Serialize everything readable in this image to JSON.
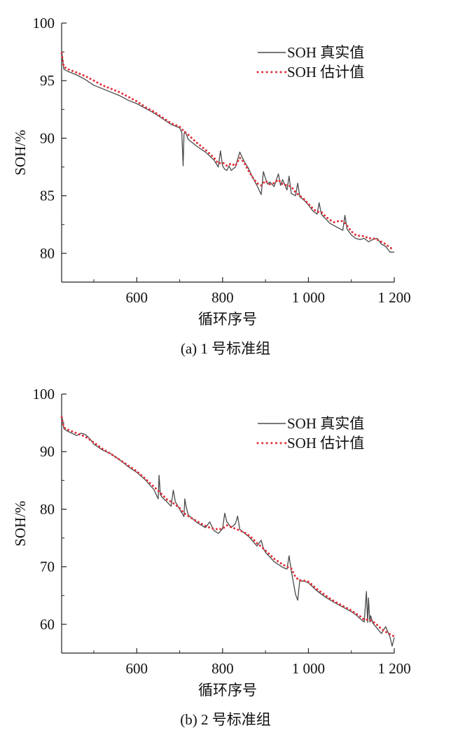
{
  "colors": {
    "actual": "#4a4a4a",
    "estimate": "#e0303a",
    "axis": "#222222"
  },
  "chart_data": [
    {
      "type": "line",
      "caption": "(a) 1 号标准组",
      "xlabel": "循环序号",
      "ylabel": "SOH/%",
      "xlim": [
        425,
        1200
      ],
      "ylim": [
        77.5,
        100
      ],
      "x_ticks": [
        {
          "v": 600,
          "label": "600"
        },
        {
          "v": 800,
          "label": "800"
        },
        {
          "v": 1000,
          "label": "1 000"
        },
        {
          "v": 1200,
          "label": "1 200"
        }
      ],
      "y_ticks": [
        {
          "v": 80,
          "label": "80"
        },
        {
          "v": 85,
          "label": "85"
        },
        {
          "v": 90,
          "label": "90"
        },
        {
          "v": 95,
          "label": "95"
        },
        {
          "v": 100,
          "label": "100"
        }
      ],
      "legend": [
        "SOH 真实值",
        "SOH 估计值"
      ],
      "series": [
        {
          "name": "SOH 真实值",
          "style": "solid",
          "x": [
            425,
            430,
            440,
            460,
            480,
            500,
            520,
            540,
            560,
            580,
            600,
            620,
            640,
            660,
            680,
            700,
            705,
            708,
            710,
            712,
            715,
            720,
            740,
            760,
            780,
            790,
            795,
            800,
            805,
            810,
            815,
            820,
            830,
            840,
            845,
            850,
            860,
            870,
            880,
            890,
            895,
            900,
            905,
            910,
            915,
            920,
            930,
            935,
            940,
            950,
            955,
            960,
            970,
            975,
            980,
            990,
            1000,
            1010,
            1020,
            1025,
            1030,
            1040,
            1050,
            1060,
            1070,
            1080,
            1085,
            1090,
            1100,
            1110,
            1120,
            1130,
            1140,
            1150,
            1160,
            1170,
            1180,
            1190,
            1200
          ],
          "y": [
            97.6,
            96.0,
            95.8,
            95.5,
            95.1,
            94.6,
            94.3,
            94.0,
            93.7,
            93.3,
            93.0,
            92.6,
            92.2,
            91.7,
            91.2,
            90.9,
            90.5,
            87.6,
            90.3,
            90.6,
            90.4,
            89.9,
            89.3,
            88.8,
            88.1,
            87.5,
            88.9,
            87.6,
            87.3,
            87.2,
            87.6,
            87.2,
            87.5,
            88.8,
            88.4,
            88.0,
            87.4,
            86.6,
            85.9,
            85.1,
            87.1,
            86.5,
            86.0,
            86.2,
            86.0,
            85.8,
            86.9,
            85.9,
            86.4,
            85.5,
            86.7,
            85.2,
            85.0,
            86.1,
            84.9,
            84.6,
            84.2,
            83.7,
            83.4,
            84.4,
            83.4,
            83.0,
            82.6,
            82.4,
            82.2,
            82.0,
            83.3,
            82.1,
            81.6,
            81.3,
            81.2,
            81.3,
            81.0,
            81.2,
            81.3,
            80.8,
            80.6,
            80.1,
            80.1
          ]
        },
        {
          "name": "SOH 估计值",
          "style": "dotted",
          "x": [
            425,
            430,
            440,
            460,
            480,
            500,
            520,
            540,
            560,
            580,
            600,
            620,
            640,
            660,
            680,
            700,
            710,
            720,
            740,
            760,
            780,
            790,
            800,
            810,
            820,
            830,
            840,
            850,
            860,
            870,
            880,
            890,
            900,
            910,
            920,
            930,
            940,
            950,
            960,
            970,
            980,
            990,
            1000,
            1010,
            1020,
            1030,
            1040,
            1050,
            1060,
            1070,
            1080,
            1090,
            1100,
            1110,
            1120,
            1130,
            1140,
            1150,
            1160,
            1170,
            1180,
            1190,
            1200
          ],
          "y": [
            97.4,
            96.2,
            96.0,
            95.7,
            95.4,
            95.0,
            94.6,
            94.3,
            94.0,
            93.6,
            93.2,
            92.7,
            92.3,
            91.8,
            91.3,
            91.0,
            90.6,
            90.3,
            89.6,
            89.0,
            88.3,
            87.8,
            87.9,
            87.6,
            87.8,
            87.6,
            88.3,
            87.9,
            87.2,
            86.6,
            86.1,
            85.9,
            86.3,
            86.0,
            86.1,
            86.4,
            86.0,
            85.9,
            85.8,
            85.3,
            85.0,
            84.7,
            84.3,
            83.9,
            83.6,
            83.6,
            83.2,
            82.9,
            82.7,
            82.8,
            82.8,
            82.4,
            81.9,
            81.6,
            81.5,
            81.5,
            81.3,
            81.3,
            81.2,
            81.0,
            80.8,
            80.5,
            80.3
          ]
        }
      ]
    },
    {
      "type": "line",
      "caption": "(b) 2 号标准组",
      "xlabel": "循环序号",
      "ylabel": "SOH/%",
      "xlim": [
        425,
        1200
      ],
      "ylim": [
        55,
        100
      ],
      "x_ticks": [
        {
          "v": 600,
          "label": "600"
        },
        {
          "v": 800,
          "label": "800"
        },
        {
          "v": 1000,
          "label": "1 000"
        },
        {
          "v": 1200,
          "label": "1 200"
        }
      ],
      "y_ticks": [
        {
          "v": 60,
          "label": "60"
        },
        {
          "v": 70,
          "label": "70"
        },
        {
          "v": 80,
          "label": "80"
        },
        {
          "v": 90,
          "label": "90"
        },
        {
          "v": 100,
          "label": "100"
        }
      ],
      "legend": [
        "SOH 真实值",
        "SOH 估计值"
      ],
      "series": [
        {
          "name": "SOH 真实值",
          "style": "solid",
          "x": [
            425,
            430,
            440,
            460,
            470,
            480,
            490,
            500,
            520,
            540,
            560,
            580,
            600,
            620,
            640,
            650,
            652,
            655,
            660,
            670,
            680,
            685,
            690,
            700,
            710,
            712,
            715,
            720,
            740,
            760,
            770,
            775,
            780,
            790,
            800,
            805,
            810,
            820,
            830,
            835,
            840,
            850,
            860,
            870,
            880,
            890,
            895,
            900,
            910,
            920,
            930,
            940,
            950,
            955,
            960,
            970,
            975,
            980,
            985,
            990,
            1000,
            1010,
            1020,
            1040,
            1060,
            1080,
            1100,
            1110,
            1120,
            1130,
            1135,
            1138,
            1140,
            1143,
            1145,
            1150,
            1160,
            1170,
            1180,
            1190,
            1195,
            1200
          ],
          "y": [
            96.5,
            94.0,
            93.5,
            92.8,
            93.2,
            93.0,
            92.3,
            91.3,
            90.3,
            89.6,
            88.6,
            87.4,
            86.4,
            85.1,
            83.4,
            81.8,
            85.9,
            82.5,
            82.0,
            81.3,
            80.5,
            83.3,
            81.3,
            80.0,
            78.7,
            81.8,
            80.5,
            79.0,
            77.7,
            76.8,
            77.8,
            77.0,
            76.3,
            75.8,
            76.6,
            79.3,
            77.8,
            76.8,
            77.5,
            78.8,
            76.5,
            75.9,
            75.3,
            74.5,
            73.6,
            74.6,
            73.2,
            72.5,
            71.7,
            70.9,
            70.4,
            69.9,
            69.6,
            71.9,
            69.3,
            65.2,
            64.2,
            67.8,
            67.5,
            67.5,
            67.2,
            66.5,
            65.8,
            64.7,
            63.8,
            63.0,
            62.2,
            61.7,
            61.0,
            60.4,
            65.7,
            60.3,
            64.6,
            60.4,
            61.5,
            60.2,
            59.3,
            58.4,
            59.6,
            57.8,
            56.2,
            57.7
          ]
        },
        {
          "name": "SOH 估计值",
          "style": "dotted",
          "x": [
            425,
            430,
            440,
            460,
            480,
            500,
            520,
            540,
            560,
            580,
            600,
            620,
            640,
            650,
            660,
            670,
            680,
            690,
            700,
            710,
            720,
            740,
            760,
            770,
            780,
            790,
            800,
            810,
            820,
            830,
            840,
            850,
            860,
            870,
            880,
            890,
            900,
            910,
            920,
            930,
            940,
            950,
            960,
            970,
            980,
            990,
            1000,
            1010,
            1020,
            1040,
            1060,
            1080,
            1100,
            1120,
            1130,
            1140,
            1150,
            1160,
            1170,
            1180,
            1190,
            1200
          ],
          "y": [
            96.0,
            94.2,
            93.8,
            93.2,
            92.6,
            91.6,
            90.5,
            89.6,
            88.6,
            87.6,
            86.6,
            85.3,
            83.9,
            83.2,
            82.5,
            81.7,
            81.3,
            80.8,
            80.2,
            79.3,
            78.8,
            77.9,
            77.1,
            76.8,
            76.6,
            76.5,
            76.6,
            77.2,
            76.9,
            76.6,
            76.3,
            76.0,
            75.5,
            74.9,
            74.1,
            73.5,
            72.8,
            72.1,
            71.4,
            70.9,
            70.4,
            70.0,
            69.7,
            68.2,
            67.6,
            67.6,
            67.4,
            66.8,
            66.1,
            65.0,
            64.0,
            63.2,
            62.4,
            61.4,
            60.8,
            60.8,
            60.5,
            59.9,
            59.2,
            58.7,
            58.3,
            57.9
          ]
        }
      ]
    }
  ]
}
